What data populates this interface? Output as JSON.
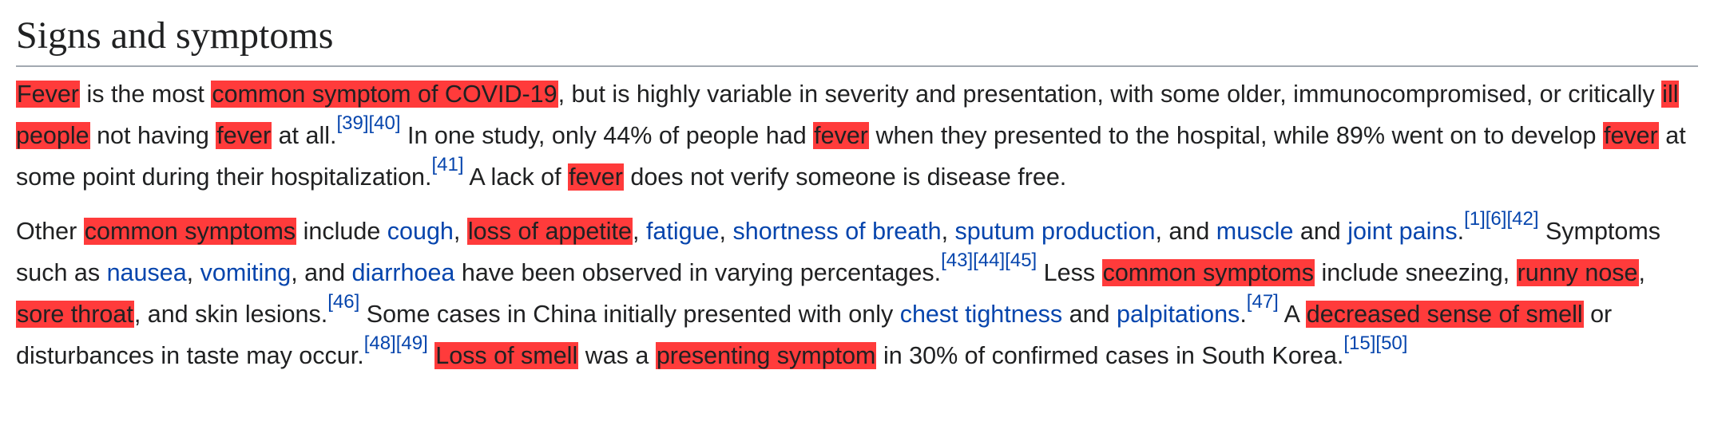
{
  "heading": "Signs and symptoms",
  "colors": {
    "highlight": "#ff3b3b",
    "link": "#0645ad",
    "text": "#202122"
  },
  "paragraphs": [
    [
      {
        "t": "mark",
        "v": "Fever"
      },
      {
        "t": "text",
        "v": " is the most "
      },
      {
        "t": "mark",
        "v": "common symptom of COVID-19"
      },
      {
        "t": "text",
        "v": ", but is highly variable in severity and presentation, with some older, immunocompromised, or critically "
      },
      {
        "t": "mark",
        "v": "ill people"
      },
      {
        "t": "text",
        "v": " not having "
      },
      {
        "t": "mark",
        "v": "fever"
      },
      {
        "t": "text",
        "v": " at all."
      },
      {
        "t": "ref",
        "v": "[39]"
      },
      {
        "t": "ref",
        "v": "[40]"
      },
      {
        "t": "text",
        "v": " In one study, only 44% of people had "
      },
      {
        "t": "mark",
        "v": "fever"
      },
      {
        "t": "text",
        "v": " when they presented to the hospital, while 89% went on to develop "
      },
      {
        "t": "mark",
        "v": "fever"
      },
      {
        "t": "text",
        "v": " at some point during their hospitalization."
      },
      {
        "t": "ref",
        "v": "[41]"
      },
      {
        "t": "text",
        "v": " A lack of "
      },
      {
        "t": "mark",
        "v": "fever"
      },
      {
        "t": "text",
        "v": " does not verify someone is disease free."
      }
    ],
    [
      {
        "t": "text",
        "v": "Other "
      },
      {
        "t": "mark",
        "v": "common symptoms"
      },
      {
        "t": "text",
        "v": " include "
      },
      {
        "t": "link",
        "v": "cough"
      },
      {
        "t": "text",
        "v": ", "
      },
      {
        "t": "mark",
        "v": "loss of appetite"
      },
      {
        "t": "text",
        "v": ", "
      },
      {
        "t": "link",
        "v": "fatigue"
      },
      {
        "t": "text",
        "v": ", "
      },
      {
        "t": "link",
        "v": "shortness of breath"
      },
      {
        "t": "text",
        "v": ", "
      },
      {
        "t": "link",
        "v": "sputum production"
      },
      {
        "t": "text",
        "v": ", and "
      },
      {
        "t": "link",
        "v": "muscle"
      },
      {
        "t": "text",
        "v": " and "
      },
      {
        "t": "link",
        "v": "joint pains"
      },
      {
        "t": "text",
        "v": "."
      },
      {
        "t": "ref",
        "v": "[1]"
      },
      {
        "t": "ref",
        "v": "[6]"
      },
      {
        "t": "ref",
        "v": "[42]"
      },
      {
        "t": "text",
        "v": " Symptoms such as "
      },
      {
        "t": "link",
        "v": "nausea"
      },
      {
        "t": "text",
        "v": ", "
      },
      {
        "t": "link",
        "v": "vomiting"
      },
      {
        "t": "text",
        "v": ", and "
      },
      {
        "t": "link",
        "v": "diarrhoea"
      },
      {
        "t": "text",
        "v": " have been observed in varying percentages."
      },
      {
        "t": "ref",
        "v": "[43]"
      },
      {
        "t": "ref",
        "v": "[44]"
      },
      {
        "t": "ref",
        "v": "[45]"
      },
      {
        "t": "text",
        "v": " Less "
      },
      {
        "t": "mark",
        "v": "common symptoms"
      },
      {
        "t": "text",
        "v": " include sneezing, "
      },
      {
        "t": "mark",
        "v": "runny nose"
      },
      {
        "t": "text",
        "v": ", "
      },
      {
        "t": "mark",
        "v": "sore throat"
      },
      {
        "t": "text",
        "v": ", and skin lesions."
      },
      {
        "t": "ref",
        "v": "[46]"
      },
      {
        "t": "text",
        "v": " Some cases in China initially presented with only "
      },
      {
        "t": "link",
        "v": "chest tightness"
      },
      {
        "t": "text",
        "v": " and "
      },
      {
        "t": "link",
        "v": "palpitations"
      },
      {
        "t": "text",
        "v": "."
      },
      {
        "t": "ref",
        "v": "[47]"
      },
      {
        "t": "text",
        "v": " A "
      },
      {
        "t": "mark",
        "v": "decreased sense of smell"
      },
      {
        "t": "text",
        "v": " or disturbances in taste may occur."
      },
      {
        "t": "ref",
        "v": "[48]"
      },
      {
        "t": "ref",
        "v": "[49]"
      },
      {
        "t": "text",
        "v": " "
      },
      {
        "t": "mark",
        "v": "Loss of smell"
      },
      {
        "t": "text",
        "v": " was a "
      },
      {
        "t": "mark",
        "v": "presenting symptom"
      },
      {
        "t": "text",
        "v": " in 30% of confirmed cases in South Korea."
      },
      {
        "t": "ref",
        "v": "[15]"
      },
      {
        "t": "ref",
        "v": "[50]"
      }
    ]
  ]
}
